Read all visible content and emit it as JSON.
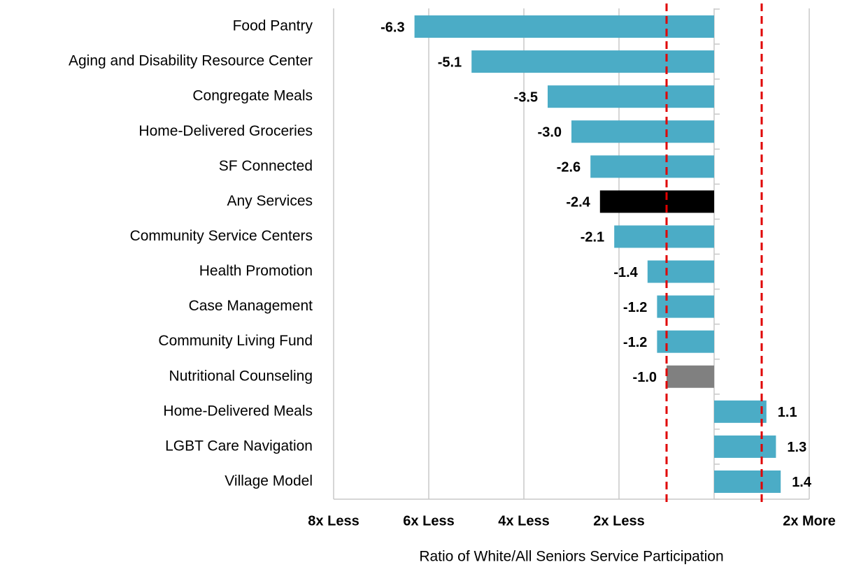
{
  "chart_data": {
    "type": "hbar",
    "x_axis_label": "Ratio of White/All Seniors Service Participation",
    "categories": [
      "Food Pantry",
      "Aging and Disability Resource Center",
      "Congregate Meals",
      "Home-Delivered Groceries",
      "SF Connected",
      "Any Services",
      "Community Service Centers",
      "Health Promotion",
      "Case Management",
      "Community Living Fund",
      "Nutritional Counseling",
      "Home-Delivered Meals",
      "LGBT Care Navigation",
      "Village Model"
    ],
    "values": [
      -6.3,
      -5.1,
      -3.5,
      -3.0,
      -2.6,
      -2.4,
      -2.1,
      -1.4,
      -1.2,
      -1.2,
      -1.0,
      1.1,
      1.3,
      1.4
    ],
    "value_labels": [
      "-6.3",
      "-5.1",
      "-3.5",
      "-3.0",
      "-2.6",
      "-2.4",
      "-2.1",
      "-1.4",
      "-1.2",
      "-1.2",
      "-1.0",
      "1.1",
      "1.3",
      "1.4"
    ],
    "colors": [
      "#4bacc6",
      "#4bacc6",
      "#4bacc6",
      "#4bacc6",
      "#4bacc6",
      "#000000",
      "#4bacc6",
      "#4bacc6",
      "#4bacc6",
      "#4bacc6",
      "#808080",
      "#4bacc6",
      "#4bacc6",
      "#4bacc6"
    ],
    "xlim": [
      -8,
      2
    ],
    "xticks": [
      {
        "value": -8,
        "label": "8x Less"
      },
      {
        "value": -6,
        "label": "6x Less"
      },
      {
        "value": -4,
        "label": "4x Less"
      },
      {
        "value": -2,
        "label": "2x Less"
      },
      {
        "value": 2,
        "label": "2x More"
      }
    ],
    "grid": true,
    "reference_lines": [
      {
        "value": -1,
        "color": "#e00000"
      },
      {
        "value": 1,
        "color": "#e00000"
      }
    ]
  }
}
